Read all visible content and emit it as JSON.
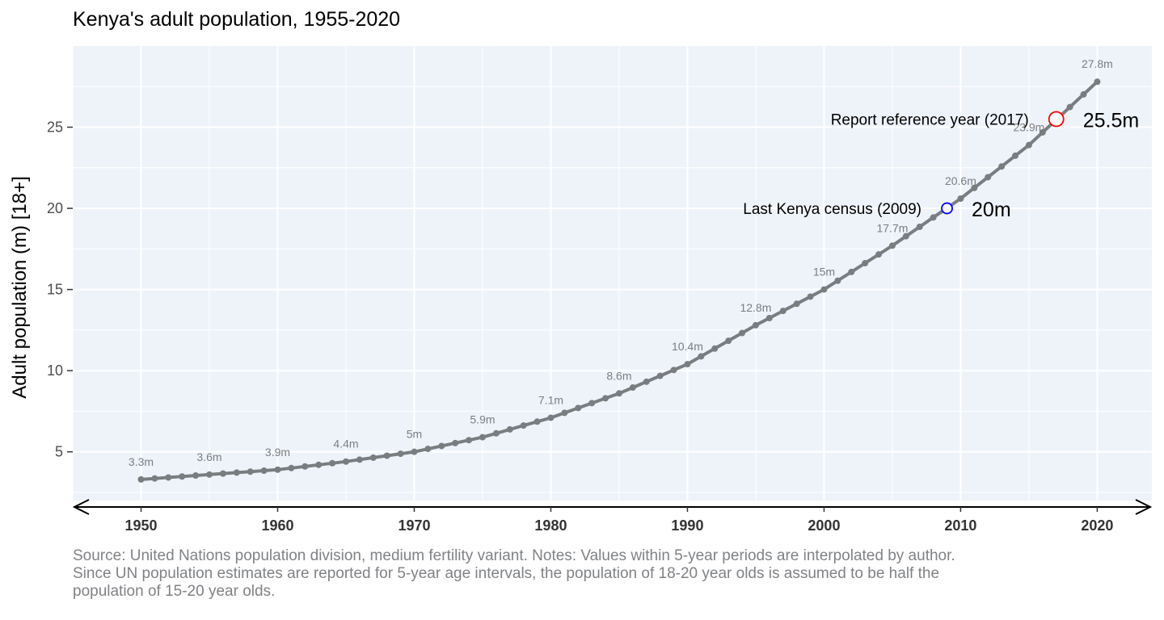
{
  "chart_data": {
    "type": "line",
    "title": "Kenya's adult population, 1955-2020",
    "xlabel": "",
    "ylabel": "Adult population (m) [18+]",
    "xlim": [
      1945,
      2024
    ],
    "ylim": [
      2,
      30
    ],
    "x_ticks": [
      1950,
      1960,
      1970,
      1980,
      1990,
      2000,
      2010,
      2020
    ],
    "y_ticks": [
      5,
      10,
      15,
      20,
      25
    ],
    "grid": true,
    "series": [
      {
        "color": "#7a7d80",
        "x": [
          1950,
          1951,
          1952,
          1953,
          1954,
          1955,
          1956,
          1957,
          1958,
          1959,
          1960,
          1961,
          1962,
          1963,
          1964,
          1965,
          1966,
          1967,
          1968,
          1969,
          1970,
          1971,
          1972,
          1973,
          1974,
          1975,
          1976,
          1977,
          1978,
          1979,
          1980,
          1981,
          1982,
          1983,
          1984,
          1985,
          1986,
          1987,
          1988,
          1989,
          1990,
          1991,
          1992,
          1993,
          1994,
          1995,
          1996,
          1997,
          1998,
          1999,
          2000,
          2001,
          2002,
          2003,
          2004,
          2005,
          2006,
          2007,
          2008,
          2009,
          2010,
          2011,
          2012,
          2013,
          2014,
          2015,
          2016,
          2017,
          2018,
          2019,
          2020
        ],
        "y": [
          3.3,
          3.36,
          3.42,
          3.48,
          3.54,
          3.6,
          3.66,
          3.72,
          3.78,
          3.84,
          3.9,
          4.0,
          4.1,
          4.2,
          4.3,
          4.4,
          4.52,
          4.64,
          4.76,
          4.88,
          5.0,
          5.18,
          5.36,
          5.54,
          5.72,
          5.9,
          6.14,
          6.38,
          6.62,
          6.86,
          7.1,
          7.4,
          7.7,
          8.0,
          8.3,
          8.6,
          8.96,
          9.32,
          9.68,
          10.04,
          10.4,
          10.88,
          11.36,
          11.84,
          12.32,
          12.8,
          13.24,
          13.68,
          14.12,
          14.56,
          15.0,
          15.54,
          16.08,
          16.62,
          17.16,
          17.7,
          18.28,
          18.86,
          19.44,
          20.02,
          20.6,
          21.26,
          21.92,
          22.58,
          23.24,
          23.9,
          24.68,
          25.46,
          26.24,
          27.02,
          27.8
        ]
      }
    ],
    "data_labels": [
      {
        "x": 1950,
        "y": 3.3,
        "text": "3.3m"
      },
      {
        "x": 1955,
        "y": 3.6,
        "text": "3.6m"
      },
      {
        "x": 1960,
        "y": 3.9,
        "text": "3.9m"
      },
      {
        "x": 1965,
        "y": 4.4,
        "text": "4.4m"
      },
      {
        "x": 1970,
        "y": 5.0,
        "text": "5m"
      },
      {
        "x": 1975,
        "y": 5.9,
        "text": "5.9m"
      },
      {
        "x": 1980,
        "y": 7.1,
        "text": "7.1m"
      },
      {
        "x": 1985,
        "y": 8.6,
        "text": "8.6m"
      },
      {
        "x": 1990,
        "y": 10.4,
        "text": "10.4m"
      },
      {
        "x": 1995,
        "y": 12.8,
        "text": "12.8m"
      },
      {
        "x": 2000,
        "y": 15.0,
        "text": "15m"
      },
      {
        "x": 2005,
        "y": 17.7,
        "text": "17.7m"
      },
      {
        "x": 2010,
        "y": 20.6,
        "text": "20.6m"
      },
      {
        "x": 2015,
        "y": 23.9,
        "text": "23.9m"
      },
      {
        "x": 2020,
        "y": 27.8,
        "text": "27.8m"
      }
    ],
    "annotations": [
      {
        "x": 2009,
        "y": 20.0,
        "label": "Last Kenya census (2009)",
        "value": "20m",
        "color": "#0000ff"
      },
      {
        "x": 2017,
        "y": 25.5,
        "label": "Report reference year (2017)",
        "value": "25.5m",
        "color": "#ff0000"
      }
    ],
    "colors": {
      "panel_background": "#eef3fa",
      "grid": "#ffffff",
      "line": "#7a7d80",
      "source_text": "#808285"
    }
  },
  "source_note": "Source: United Nations population division, medium fertility variant. Notes: Values within 5-year periods are interpolated by author. Since UN population estimates are reported for 5-year age intervals, the population of 18-20 year olds is assumed to be half the population of 15-20 year olds."
}
